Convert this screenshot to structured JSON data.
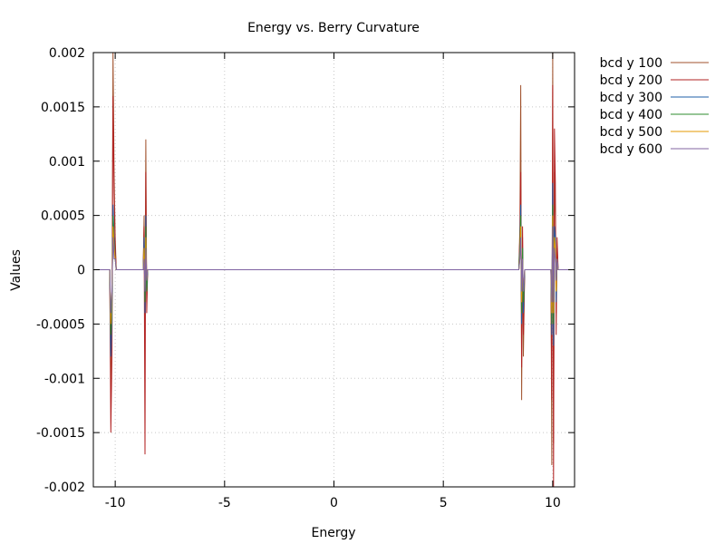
{
  "chart_data": {
    "type": "line",
    "title": "Energy vs. Berry Curvature",
    "xlabel": "Energy",
    "ylabel": "Values",
    "xlim": [
      -11,
      11
    ],
    "ylim": [
      -0.002,
      0.002
    ],
    "xticks": [
      -10,
      -5,
      0,
      5,
      10
    ],
    "xtick_labels": [
      "-10",
      "-5",
      "0",
      "5",
      "10"
    ],
    "yticks": [
      -0.002,
      -0.0015,
      -0.001,
      -0.0005,
      0,
      0.0005,
      0.001,
      0.0015,
      0.002
    ],
    "ytick_labels": [
      "-0.002",
      "-0.0015",
      "-0.001",
      "-0.0005",
      "0",
      "0.0005",
      "0.001",
      "0.0015",
      "0.002"
    ],
    "grid": true,
    "legend_position": "top-right outside",
    "series": [
      {
        "name": "bcd y 100",
        "color": "#a0522d",
        "x": [
          -11,
          -10.25,
          -10.2,
          -10.15,
          -10.1,
          -10.05,
          -10.0,
          -9.95,
          -8.72,
          -8.68,
          -8.64,
          -8.6,
          -8.56,
          -8.52,
          -8.45,
          8.45,
          8.5,
          8.54,
          8.58,
          8.62,
          8.66,
          8.72,
          9.92,
          9.96,
          10.0,
          10.04,
          10.08,
          10.12,
          10.16,
          10.2,
          10.25,
          11
        ],
        "y": [
          0,
          0,
          -0.0012,
          -0.0006,
          0.002,
          0.0009,
          0.0003,
          0,
          0,
          0.0005,
          -0.0005,
          0.0012,
          -0.0003,
          0,
          0,
          0,
          0.0004,
          0.0017,
          -0.0012,
          0.0003,
          -0.0008,
          0,
          0,
          -0.0018,
          0.002,
          -0.0016,
          0.0009,
          0.0005,
          -0.0004,
          0.0002,
          0,
          0
        ]
      },
      {
        "name": "bcd y 200",
        "color": "#b22222",
        "x": [
          -11,
          -10.25,
          -10.2,
          -10.15,
          -10.1,
          -10.05,
          -10.0,
          -9.95,
          -8.72,
          -8.68,
          -8.64,
          -8.6,
          -8.56,
          -8.52,
          -8.45,
          8.45,
          8.5,
          8.54,
          8.58,
          8.62,
          8.66,
          8.72,
          9.92,
          9.96,
          10.0,
          10.04,
          10.08,
          10.12,
          10.16,
          10.2,
          10.25,
          11
        ],
        "y": [
          0,
          0,
          -0.0015,
          -0.0008,
          0.0016,
          0.0007,
          0.0002,
          0,
          0,
          0.0004,
          -0.0017,
          0.0009,
          -0.0004,
          0,
          0,
          0,
          0.0003,
          0.0009,
          -0.0009,
          0.0004,
          -0.0006,
          0,
          0,
          -0.0012,
          0.0017,
          -0.002,
          0.0013,
          0.0008,
          -0.0006,
          0.0003,
          0,
          0
        ]
      },
      {
        "name": "bcd y 300",
        "color": "#1f5fa8",
        "x": [
          -11,
          -10.25,
          -10.2,
          -10.15,
          -10.1,
          -10.05,
          -10.0,
          -9.95,
          -8.72,
          -8.68,
          -8.64,
          -8.6,
          -8.56,
          -8.52,
          -8.45,
          8.45,
          8.5,
          8.54,
          8.58,
          8.62,
          8.66,
          8.72,
          9.92,
          9.96,
          10.0,
          10.04,
          10.08,
          10.12,
          10.16,
          10.2,
          10.25,
          11
        ],
        "y": [
          0,
          0,
          -0.0008,
          -0.0004,
          0.0006,
          0.0003,
          0.0001,
          0,
          0,
          0.0003,
          -0.0004,
          0.0005,
          -0.0002,
          0,
          0,
          0,
          0.0002,
          0.0006,
          -0.0005,
          0.0002,
          -0.0004,
          0,
          0,
          -0.0006,
          0.0008,
          -0.0007,
          0.0004,
          0.0003,
          -0.0003,
          0.0001,
          0,
          0
        ]
      },
      {
        "name": "bcd y 400",
        "color": "#2e8b2e",
        "x": [
          -11,
          -10.25,
          -10.2,
          -10.15,
          -10.1,
          -10.05,
          -10.0,
          -9.95,
          -8.72,
          -8.68,
          -8.64,
          -8.6,
          -8.56,
          -8.52,
          -8.45,
          8.45,
          8.5,
          8.54,
          8.58,
          8.62,
          8.66,
          8.72,
          9.92,
          9.96,
          10.0,
          10.04,
          10.08,
          10.12,
          10.16,
          10.2,
          10.25,
          11
        ],
        "y": [
          0,
          0,
          -0.0006,
          -0.0003,
          0.0005,
          0.0002,
          0.0001,
          0,
          0,
          0.0002,
          -0.0003,
          0.0004,
          -0.0002,
          0,
          0,
          0,
          0.0002,
          0.0005,
          -0.0004,
          0.0002,
          -0.0003,
          0,
          0,
          -0.0005,
          0.0006,
          -0.0005,
          0.0003,
          0.0002,
          -0.0002,
          0.0001,
          0,
          0
        ]
      },
      {
        "name": "bcd y 500",
        "color": "#e69a00",
        "x": [
          -11,
          -10.25,
          -10.2,
          -10.15,
          -10.1,
          -10.05,
          -10.0,
          -9.95,
          -8.72,
          -8.68,
          -8.64,
          -8.6,
          -8.56,
          -8.52,
          -8.45,
          8.45,
          8.5,
          8.54,
          8.58,
          8.62,
          8.66,
          8.72,
          9.92,
          9.96,
          10.0,
          10.04,
          10.08,
          10.12,
          10.16,
          10.2,
          10.25,
          11
        ],
        "y": [
          0,
          0,
          -0.0005,
          -0.0002,
          0.0004,
          0.0002,
          0.0001,
          0,
          0,
          0.0002,
          -0.0002,
          0.0003,
          -0.0001,
          0,
          0,
          0,
          0.0001,
          0.0004,
          -0.0003,
          0.0001,
          -0.0002,
          0,
          0,
          -0.0004,
          0.0005,
          -0.0004,
          0.0003,
          0.0002,
          -0.0002,
          0.0001,
          0,
          0
        ]
      },
      {
        "name": "bcd y 600",
        "color": "#8064a2",
        "x": [
          -11,
          -10.25,
          -10.2,
          -10.15,
          -10.1,
          -10.05,
          -10.0,
          -9.95,
          -8.72,
          -8.68,
          -8.64,
          -8.6,
          -8.56,
          -8.52,
          -8.45,
          8.45,
          8.5,
          8.54,
          8.58,
          8.62,
          8.66,
          8.72,
          9.92,
          9.96,
          10.0,
          10.04,
          10.08,
          10.12,
          10.16,
          10.2,
          10.25,
          11
        ],
        "y": [
          0,
          0,
          -0.0004,
          -0.0002,
          0.0003,
          0.0001,
          0.0001,
          0,
          0,
          0.0001,
          -0.0002,
          0.0002,
          -0.0001,
          0,
          0,
          0,
          0.0001,
          0.0003,
          -0.0002,
          0.0001,
          -0.0002,
          0,
          0,
          -0.0003,
          0.0004,
          -0.0003,
          0.0002,
          0.0001,
          -0.0001,
          0.0001,
          0,
          0
        ]
      }
    ]
  }
}
